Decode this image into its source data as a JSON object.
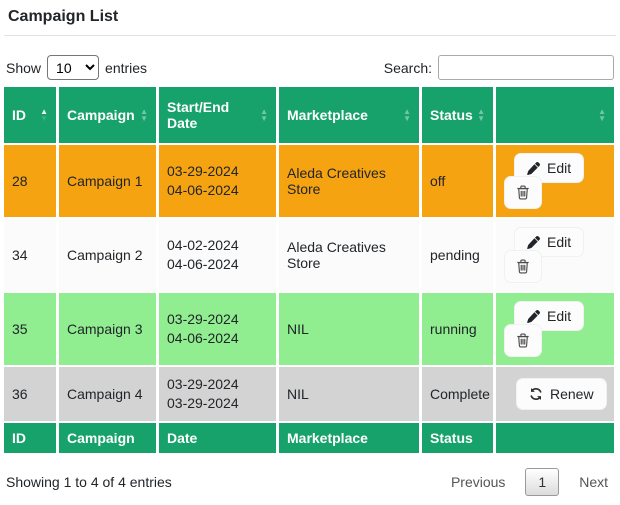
{
  "page_title": "Campaign List",
  "controls": {
    "show_label": "Show",
    "entries_label": "entries",
    "page_length_value": "10",
    "search_label": "Search:",
    "search_value": ""
  },
  "table": {
    "columns": [
      {
        "label": "ID",
        "sort": "asc"
      },
      {
        "label": "Campaign",
        "sort": "none"
      },
      {
        "label": "Start/End Date",
        "sort": "none"
      },
      {
        "label": "Marketplace",
        "sort": "none"
      },
      {
        "label": "Status",
        "sort": "none"
      },
      {
        "label": "",
        "sort": "none"
      }
    ],
    "footer_columns": [
      "ID",
      "Campaign",
      "Date",
      "Marketplace",
      "Status",
      ""
    ],
    "rows": [
      {
        "id": "28",
        "campaign": "Campaign 1",
        "dates": [
          "03-29-2024",
          "04-06-2024"
        ],
        "marketplace": "Aleda Creatives Store",
        "status": "off",
        "color_key": "row_off",
        "actions": [
          "edit",
          "delete"
        ]
      },
      {
        "id": "34",
        "campaign": "Campaign 2",
        "dates": [
          "04-02-2024",
          "04-06-2024"
        ],
        "marketplace": "Aleda Creatives Store",
        "status": "pending",
        "color_key": "row_pending",
        "actions": [
          "edit",
          "delete"
        ]
      },
      {
        "id": "35",
        "campaign": "Campaign 3",
        "dates": [
          "03-29-2024",
          "04-06-2024"
        ],
        "marketplace": "NIL",
        "status": "running",
        "color_key": "row_running",
        "actions": [
          "edit",
          "delete"
        ]
      },
      {
        "id": "36",
        "campaign": "Campaign 4",
        "dates": [
          "03-29-2024",
          "03-29-2024"
        ],
        "marketplace": "NIL",
        "status": "Complete",
        "color_key": "row_complete",
        "actions": [
          "renew"
        ]
      }
    ],
    "action_labels": {
      "edit": "Edit",
      "delete": "",
      "renew": "Renew"
    },
    "action_icons": {
      "edit": "pencil-icon",
      "delete": "trash-icon",
      "renew": "refresh-icon"
    }
  },
  "summary_text": "Showing 1 to 4 of 4 entries",
  "pagination": {
    "previous_label": "Previous",
    "current_page": "1",
    "next_label": "Next"
  },
  "colors": {
    "header": "#17a26b",
    "row_off": "#f6a312",
    "row_pending": "#fbfbfb",
    "row_running": "#90ee90",
    "row_complete": "#d3d3d3"
  }
}
